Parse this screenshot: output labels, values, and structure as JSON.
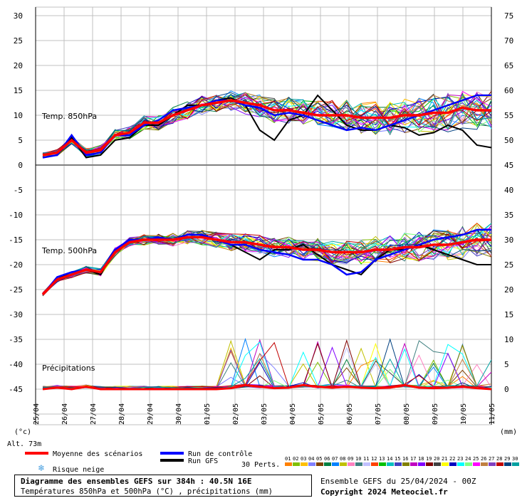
{
  "chart_data": {
    "type": "line",
    "left_axis_ticks": [
      "30",
      "25",
      "20",
      "15",
      "10",
      "5",
      "0",
      "-5",
      "-10",
      "-15",
      "-20",
      "-25",
      "-30",
      "-35",
      "-40",
      "-45"
    ],
    "right_axis_ticks_temp": [
      "75",
      "70",
      "65",
      "60",
      "55",
      "50",
      "45",
      "40",
      "35",
      "30",
      "25",
      "20",
      "15"
    ],
    "right_axis_ticks_precip": [
      "10",
      "5",
      "0"
    ],
    "left_unit": "(°c)",
    "right_unit": "(mm)",
    "x_ticks": [
      "25/04",
      "26/04",
      "27/04",
      "28/04",
      "29/04",
      "30/04",
      "01/05",
      "02/05",
      "03/05",
      "04/05",
      "05/05",
      "06/05",
      "07/05",
      "08/05",
      "09/05",
      "10/05",
      "11/05"
    ],
    "panel_labels": [
      "Temp. 850hPa",
      "Temp. 500hPa",
      "Précipitations"
    ],
    "altitude_label": "Alt. 73m",
    "t850_mean": [
      2,
      2.5,
      5,
      2.5,
      3,
      6,
      6.5,
      8.5,
      8.5,
      10,
      11,
      12,
      12.5,
      13,
      12.5,
      12,
      11,
      11,
      10.5,
      10,
      10,
      10,
      9.5,
      9.5,
      9.5,
      10,
      10,
      10.5,
      10.5,
      11.5,
      11,
      11
    ],
    "t850_control": [
      1.5,
      2,
      6,
      2,
      2.5,
      6,
      6,
      8,
      9,
      11,
      11.5,
      12,
      13,
      13,
      12,
      11.5,
      10,
      10.5,
      10,
      9,
      8,
      7,
      7.5,
      7,
      8,
      9,
      10,
      11,
      12,
      13,
      14,
      14
    ],
    "t850_gfs": [
      1.5,
      2,
      5.5,
      1.5,
      2,
      5,
      5.5,
      8,
      8,
      10,
      12,
      12,
      13,
      13.5,
      12,
      7,
      5,
      9,
      10,
      14,
      11,
      8,
      7,
      7,
      8,
      7.5,
      6,
      6.5,
      8,
      7,
      4,
      3.5
    ],
    "t500_mean": [
      -26,
      -23,
      -22,
      -21,
      -21.5,
      -17.5,
      -15.5,
      -15,
      -15,
      -15,
      -14.5,
      -14.5,
      -15,
      -15.5,
      -15.5,
      -16,
      -16.5,
      -16.5,
      -17,
      -17,
      -17.5,
      -17.5,
      -17.5,
      -17,
      -17,
      -16.5,
      -16.5,
      -16,
      -16,
      -15.5,
      -15,
      -15
    ],
    "t500_control": [
      -26,
      -22.5,
      -21.5,
      -21,
      -21.5,
      -17,
      -15,
      -15,
      -14.5,
      -15,
      -14,
      -14,
      -15,
      -16,
      -16,
      -17,
      -17.5,
      -18,
      -19,
      -19,
      -20,
      -22,
      -21.5,
      -19,
      -18,
      -17,
      -16,
      -15,
      -14.5,
      -14,
      -13,
      -13
    ],
    "t500_gfs": [
      -26,
      -22.5,
      -22,
      -21,
      -22,
      -17,
      -15,
      -15,
      -14.5,
      -15,
      -14,
      -14,
      -15,
      -16,
      -17.5,
      -19,
      -17,
      -17,
      -16,
      -18,
      -20,
      -21,
      -22,
      -19,
      -17,
      -17,
      -16,
      -17,
      -18,
      -19,
      -20,
      -20
    ],
    "precip_mean": [
      0,
      0.3,
      0,
      0.5,
      0,
      0,
      0,
      0,
      0,
      0,
      0,
      0,
      0,
      0.2,
      0.8,
      0.5,
      0.2,
      0.3,
      0.8,
      0.5,
      0.3,
      0.5,
      0.3,
      0.2,
      0.3,
      0.8,
      0.3,
      0.2,
      0.3,
      0.5,
      0.2,
      0
    ],
    "legend": {
      "mean": "Moyenne des scénarios",
      "control": "Run de contrôle",
      "gfs": "Run GFS",
      "snow": "Risque neige",
      "perts_label": "30 Perts.",
      "pert_numbers": [
        "01",
        "02",
        "03",
        "04",
        "05",
        "06",
        "07",
        "08",
        "09",
        "10",
        "11",
        "12",
        "13",
        "14",
        "15",
        "16",
        "17",
        "18",
        "19",
        "20",
        "21",
        "22",
        "23",
        "24",
        "25",
        "26",
        "27",
        "28",
        "29",
        "30"
      ]
    },
    "colors": {
      "mean": "#ff0000",
      "control": "#0000ff",
      "gfs": "#000000",
      "grid": "#c0c0c0",
      "pert_swatches": [
        "#ff8000",
        "#80c000",
        "#ffc000",
        "#8080ff",
        "#804000",
        "#008040",
        "#0080ff",
        "#c0c000",
        "#ff80c0",
        "#408080",
        "#c0c0ff",
        "#ff4000",
        "#00c000",
        "#00c0c0",
        "#4040c0",
        "#808000",
        "#c000c0",
        "#8000ff",
        "#800000",
        "#404040",
        "#ffff00",
        "#0000c0",
        "#00ffff",
        "#80ff80",
        "#ff00ff",
        "#c08040",
        "#8040c0",
        "#c00000",
        "#004080",
        "#00a0a0"
      ]
    }
  },
  "footer": {
    "title": "Diagramme des ensembles GEFS sur 384h : 40.5N 16E",
    "subtitle": "Températures 850hPa et 500hPa (°C) , précipitations (mm)",
    "run_info": "Ensemble GEFS du 25/04/2024 - 00Z",
    "copyright": "Copyright 2024 Meteociel.fr"
  }
}
